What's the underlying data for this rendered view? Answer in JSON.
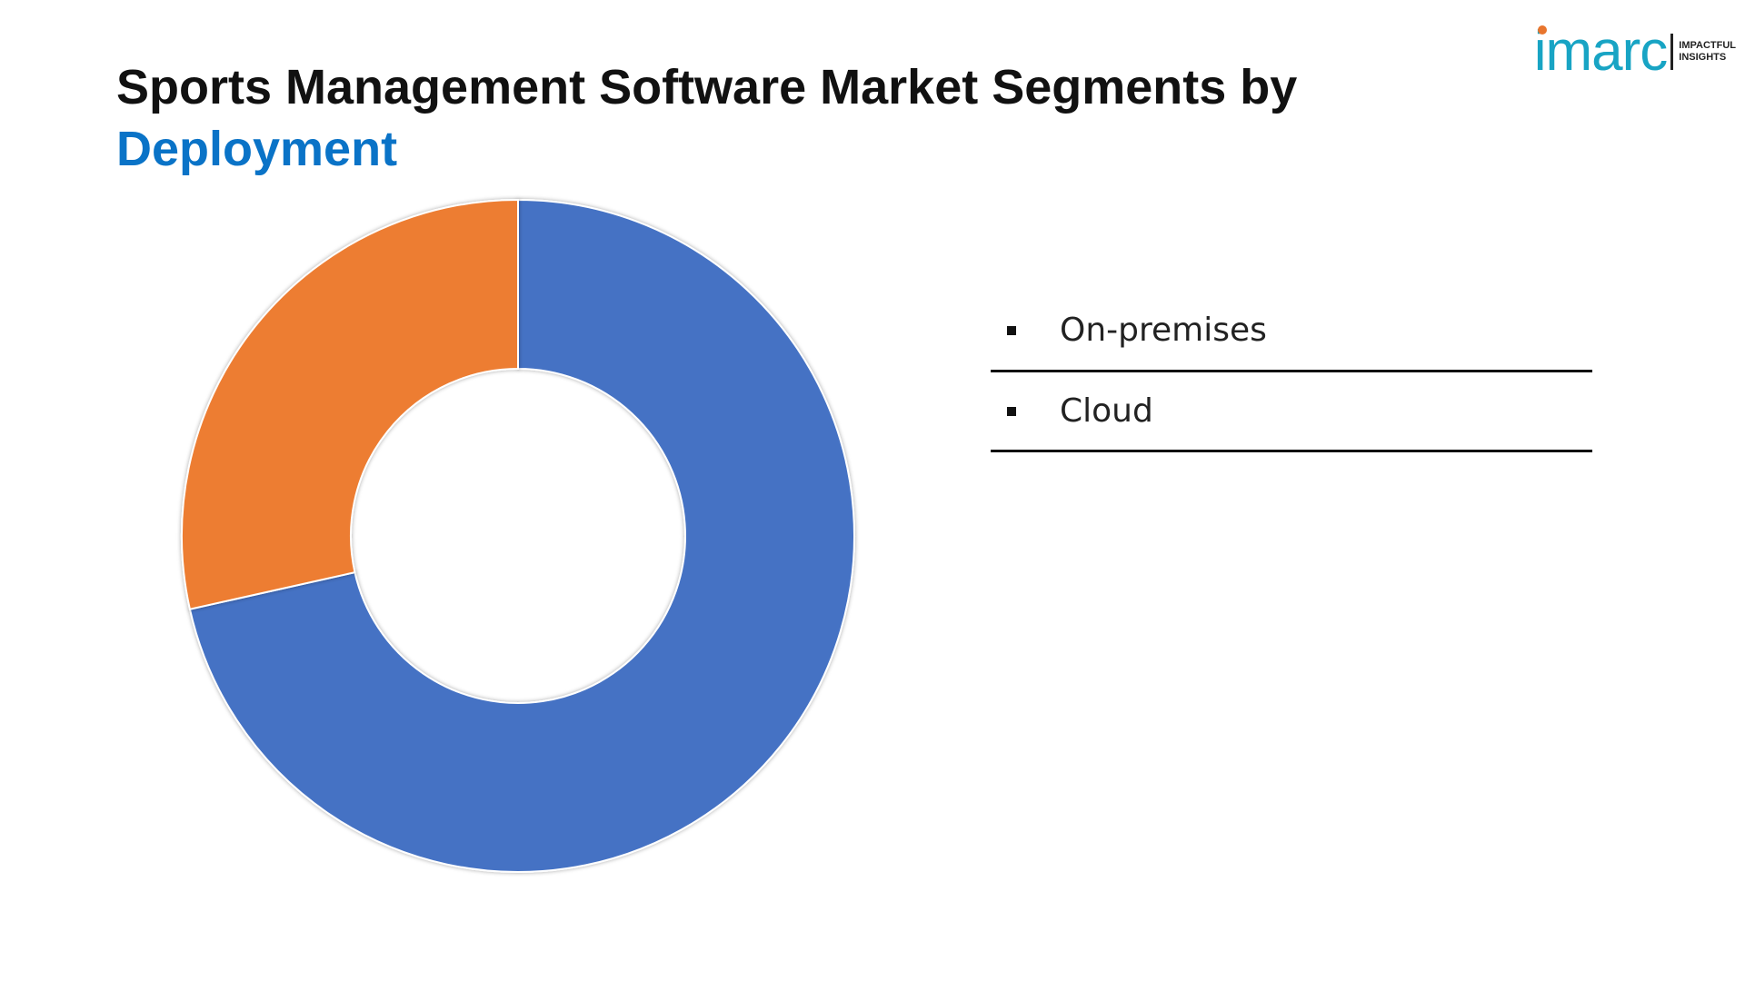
{
  "title": {
    "line1": "Sports Management Software Market Segments by",
    "line2": "Deployment"
  },
  "logo": {
    "word": "imarc",
    "tagline_1": "IMPACTFUL",
    "tagline_2": "INSIGHTS",
    "word_color": "#18a4c4",
    "dot_color": "#e8752d"
  },
  "legend": {
    "items": [
      {
        "label": "On-premises"
      },
      {
        "label": "Cloud"
      }
    ]
  },
  "chart_data": {
    "type": "pie",
    "variant": "donut",
    "title": "Sports Management Software Market Segments by Deployment",
    "start_angle_deg": 0,
    "direction": "clockwise",
    "series": [
      {
        "name": "On-premises",
        "value": 71.5,
        "color": "#4472c4"
      },
      {
        "name": "Cloud",
        "value": 28.5,
        "color": "#ed7d31"
      }
    ],
    "legend_position": "right"
  }
}
